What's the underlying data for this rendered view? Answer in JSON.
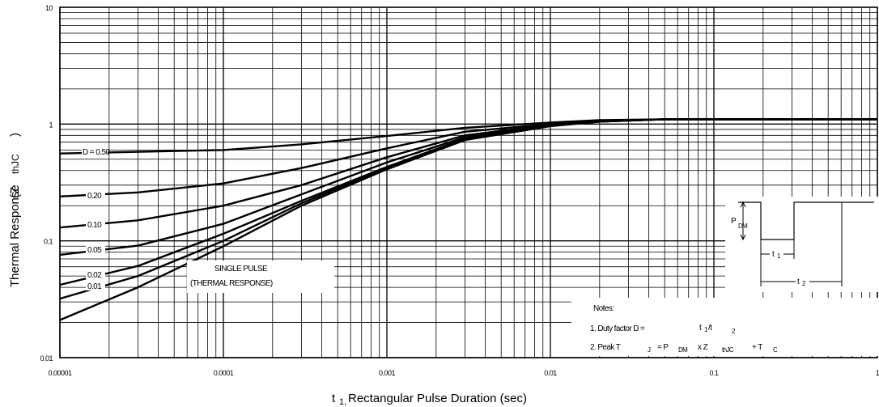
{
  "chart_data": {
    "type": "line",
    "xscale": "log",
    "yscale": "log",
    "xlim": [
      1e-05,
      1
    ],
    "ylim": [
      0.01,
      10
    ],
    "grid": true,
    "x_tick_labels": [
      "0.00001",
      "0.0001",
      "0.001",
      "0.01",
      "0.1",
      "1"
    ],
    "y_tick_labels": [
      "0.01",
      "0.1",
      "1",
      "10"
    ],
    "xlabel": {
      "prefix": "t",
      "sub": "1,",
      "text": " Rectangular Pulse Duration (sec)"
    },
    "ylabel": {
      "main": "Thermal Response",
      "paren": "(Z",
      "sub": "thJC",
      "close": ")"
    },
    "series": [
      {
        "name": "D = 0.50",
        "x": [
          1e-05,
          0.0001,
          0.0003,
          0.001,
          0.003,
          0.01,
          0.02,
          0.05,
          0.1,
          1
        ],
        "y": [
          0.56,
          0.6,
          0.67,
          0.79,
          0.93,
          1.03,
          1.08,
          1.1,
          1.1,
          1.1
        ]
      },
      {
        "name": "0.20",
        "x": [
          1e-05,
          3e-05,
          0.0001,
          0.0003,
          0.001,
          0.003,
          0.01,
          0.02,
          0.05,
          0.1,
          1
        ],
        "y": [
          0.24,
          0.26,
          0.31,
          0.42,
          0.62,
          0.86,
          1.0,
          1.07,
          1.1,
          1.1,
          1.1
        ]
      },
      {
        "name": "0.10",
        "x": [
          1e-05,
          3e-05,
          0.0001,
          0.0003,
          0.001,
          0.003,
          0.01,
          0.02,
          0.05,
          0.1,
          1
        ],
        "y": [
          0.13,
          0.15,
          0.2,
          0.3,
          0.52,
          0.8,
          0.99,
          1.06,
          1.1,
          1.1,
          1.1
        ]
      },
      {
        "name": "0.05",
        "x": [
          1e-05,
          3e-05,
          0.0001,
          0.0003,
          0.001,
          0.003,
          0.01,
          0.02,
          0.05,
          0.1,
          1
        ],
        "y": [
          0.076,
          0.091,
          0.14,
          0.25,
          0.47,
          0.77,
          0.98,
          1.06,
          1.1,
          1.1,
          1.1
        ]
      },
      {
        "name": "0.02",
        "x": [
          1e-05,
          3e-05,
          0.0001,
          0.0003,
          0.001,
          0.003,
          0.01,
          0.02,
          0.05,
          0.1,
          1
        ],
        "y": [
          0.042,
          0.061,
          0.115,
          0.22,
          0.43,
          0.75,
          0.97,
          1.05,
          1.1,
          1.1,
          1.1
        ]
      },
      {
        "name": "0.01",
        "x": [
          1e-05,
          3e-05,
          0.0001,
          0.0003,
          0.001,
          0.003,
          0.01,
          0.02,
          0.05,
          0.1,
          1
        ],
        "y": [
          0.032,
          0.05,
          0.1,
          0.21,
          0.42,
          0.74,
          0.97,
          1.05,
          1.1,
          1.1,
          1.1
        ]
      },
      {
        "name": "SINGLE PULSE",
        "x": [
          1e-05,
          3e-05,
          0.0001,
          0.0003,
          0.001,
          0.003,
          0.01,
          0.02,
          0.05,
          0.1,
          1
        ],
        "y": [
          0.021,
          0.04,
          0.09,
          0.2,
          0.41,
          0.73,
          0.96,
          1.05,
          1.1,
          1.1,
          1.1
        ]
      }
    ],
    "annotations": {
      "single_pulse": [
        "SINGLE PULSE",
        "(THERMAL RESPONSE)"
      ],
      "notes_title": "Notes:",
      "note1": {
        "text": "1. Duty factor D =",
        "t": "t",
        "s1": "1",
        "slash": "/t",
        "s2": "2"
      },
      "note2": {
        "text": "2. Peak T",
        "tj": "J",
        "eq": "= P",
        "dm": "DM",
        "x": "x Z",
        "thjc": "thJC",
        "plus": "+ T",
        "c": "C"
      }
    },
    "inset": {
      "p": "P",
      "dm": "DM",
      "t1": "t",
      "t1s": "1",
      "t2": "t",
      "t2s": "2"
    }
  }
}
